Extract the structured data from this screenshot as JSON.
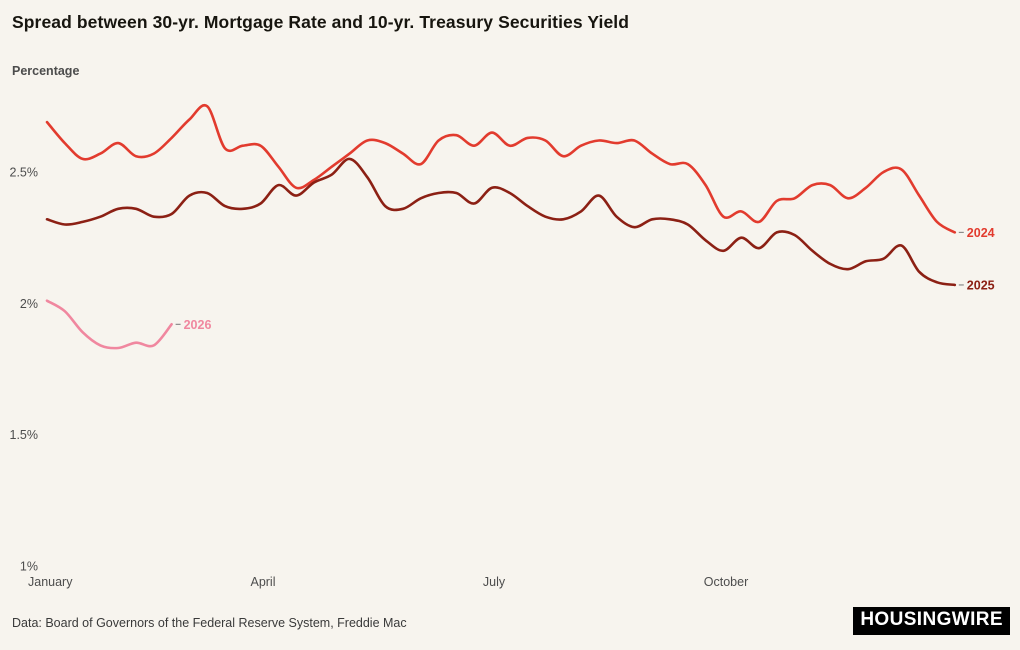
{
  "header": {
    "title": "Spread between 30-yr. Mortgage Rate and 10-yr. Treasury Securities Yield"
  },
  "footer": {
    "source": "Data: Board of Governors of the Federal Reserve System, Freddie Mac",
    "logo_text": "HOUSINGWIRE"
  },
  "colors": {
    "background": "#f7f4ee",
    "axis_text": "#4d4d4d",
    "series_2024": "#e23b2e",
    "series_2025": "#8c2014",
    "series_2026": "#f0879f"
  },
  "chart_data": {
    "type": "line",
    "title": "Spread between 30-yr. Mortgage Rate and 10-yr. Treasury Securities Yield",
    "xlabel": "",
    "ylabel": "Percentage",
    "x_unit": "weekly observations, January through December",
    "x_ticks": [
      "January",
      "April",
      "July",
      "October"
    ],
    "y_ticks": [
      {
        "value": 2.5,
        "label": "2.5%"
      },
      {
        "value": 2.0,
        "label": "2%"
      },
      {
        "value": 1.5,
        "label": "1.5%"
      },
      {
        "value": 1.0,
        "label": "1%"
      }
    ],
    "ylim": [
      1.0,
      2.85
    ],
    "grid": false,
    "legend_position": "line-end-labels",
    "series": [
      {
        "name": "2024",
        "color": "#e23b2e",
        "values": [
          2.69,
          2.61,
          2.55,
          2.57,
          2.61,
          2.56,
          2.57,
          2.63,
          2.7,
          2.75,
          2.59,
          2.6,
          2.6,
          2.52,
          2.44,
          2.47,
          2.52,
          2.57,
          2.62,
          2.61,
          2.57,
          2.53,
          2.62,
          2.64,
          2.6,
          2.65,
          2.6,
          2.63,
          2.62,
          2.56,
          2.6,
          2.62,
          2.61,
          2.62,
          2.57,
          2.53,
          2.53,
          2.45,
          2.33,
          2.35,
          2.31,
          2.39,
          2.4,
          2.45,
          2.45,
          2.4,
          2.44,
          2.5,
          2.51,
          2.41,
          2.31,
          2.27
        ]
      },
      {
        "name": "2025",
        "color": "#8c2014",
        "values": [
          2.32,
          2.3,
          2.31,
          2.33,
          2.36,
          2.36,
          2.33,
          2.34,
          2.41,
          2.42,
          2.37,
          2.36,
          2.38,
          2.45,
          2.41,
          2.46,
          2.49,
          2.55,
          2.48,
          2.37,
          2.36,
          2.4,
          2.42,
          2.42,
          2.38,
          2.44,
          2.42,
          2.37,
          2.33,
          2.32,
          2.35,
          2.41,
          2.33,
          2.29,
          2.32,
          2.32,
          2.3,
          2.24,
          2.2,
          2.25,
          2.21,
          2.27,
          2.26,
          2.2,
          2.15,
          2.13,
          2.16,
          2.17,
          2.22,
          2.12,
          2.08,
          2.07
        ]
      },
      {
        "name": "2026",
        "color": "#f0879f",
        "values": [
          2.01,
          1.97,
          1.89,
          1.84,
          1.83,
          1.85,
          1.84,
          1.92
        ]
      }
    ]
  }
}
